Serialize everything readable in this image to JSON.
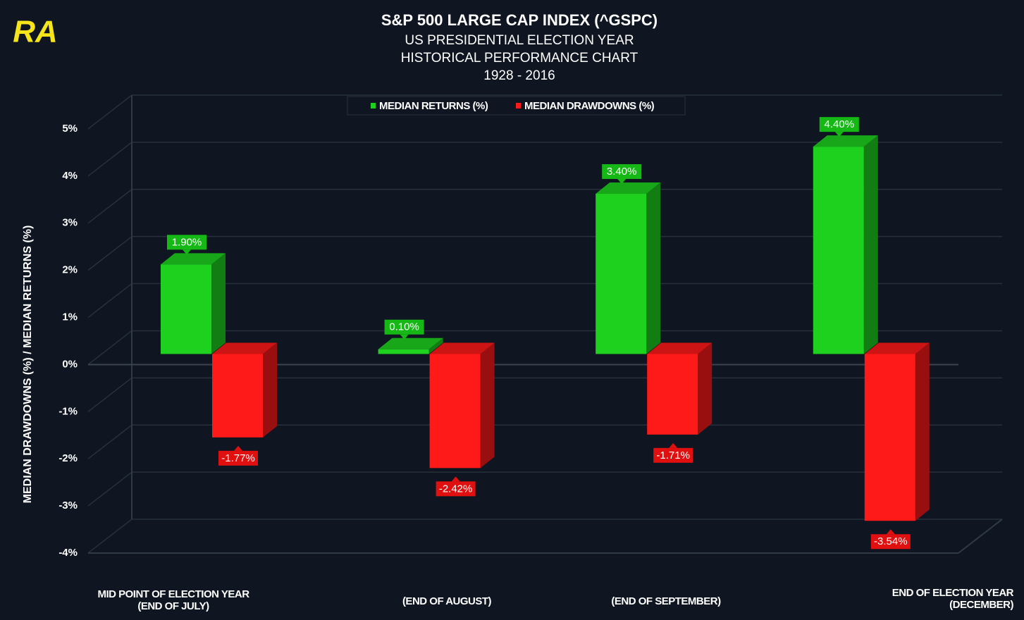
{
  "chart_data": {
    "type": "bar3d",
    "logo": "RA",
    "title": "S&P 500 LARGE CAP INDEX (^GSPC)",
    "subtitle": [
      "US PRESIDENTIAL ELECTION YEAR",
      "HISTORICAL PERFORMANCE CHART",
      "1928 - 2016"
    ],
    "y_axis_label": "MEDIAN DRAWDOWNS (%) / MEDIAN RETURNS (%)",
    "categories": [
      "MID POINT OF ELECTION YEAR\n(END OF JULY)",
      "(END OF AUGUST)",
      "(END OF SEPTEMBER)",
      "END OF ELECTION YEAR\n(DECEMBER)"
    ],
    "series": [
      {
        "name": "MEDIAN RETURNS (%)",
        "color": "#1fd11f",
        "values": [
          1.9,
          0.1,
          3.4,
          4.4
        ],
        "value_labels": [
          "1.90%",
          "0.10%",
          "3.40%",
          "4.40%"
        ]
      },
      {
        "name": "MEDIAN DRAWDOWNS (%)",
        "color": "#ff1a1a",
        "values": [
          -1.77,
          -2.42,
          -1.71,
          -3.54
        ],
        "value_labels": [
          "-1.77%",
          "-2.42%",
          "-1.71%",
          "-3.54%"
        ]
      }
    ],
    "ylim": [
      -4,
      5
    ],
    "yticks": [
      {
        "value": -4,
        "label": "-4%"
      },
      {
        "value": -3,
        "label": "-3%"
      },
      {
        "value": -2,
        "label": "-2%"
      },
      {
        "value": -1,
        "label": "-1%"
      },
      {
        "value": 0,
        "label": "0%"
      },
      {
        "value": 1,
        "label": "1%"
      },
      {
        "value": 2,
        "label": "2%"
      },
      {
        "value": 3,
        "label": "3%"
      },
      {
        "value": 4,
        "label": "4%"
      },
      {
        "value": 5,
        "label": "5%"
      }
    ],
    "grid": true,
    "legend": "top"
  }
}
